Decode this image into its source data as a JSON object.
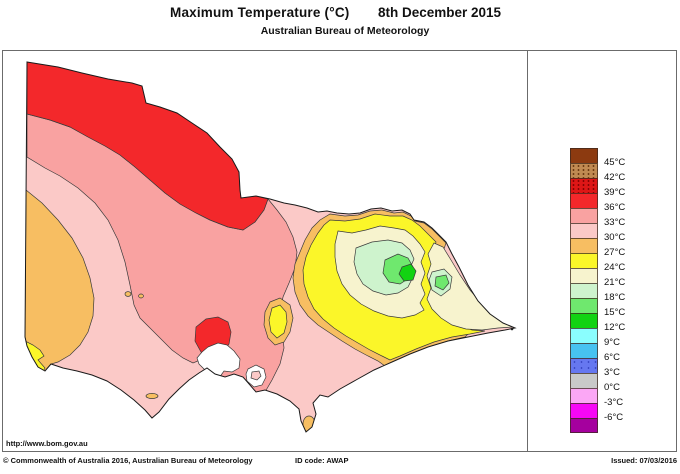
{
  "header": {
    "title": "Maximum Temperature (°C)",
    "date": "8th December 2015",
    "subtitle": "Australian Bureau of Meteorology"
  },
  "map": {
    "url_label": "http://www.bom.gov.au",
    "palette": {
      "band_36_39": "#F3282B",
      "band_33_36": "#F9A2A1",
      "band_30_33": "#FBC9C7",
      "band_27_30": "#F7BE62",
      "band_24_27": "#FBF629",
      "band_21_24": "#F7F3CE",
      "band_18_21": "#CEF3CD",
      "band_15_18": "#6FE86E",
      "band_12_15": "#12D312",
      "water": "#FFFFFF",
      "outline": "#1a1a1a",
      "contour": "#3a3a3a"
    }
  },
  "legend": {
    "scale": [
      {
        "color": "#8C3A10",
        "boundary_label": "45°C"
      },
      {
        "color": "#C08A52",
        "speckle": "brown",
        "boundary_label": "42°C"
      },
      {
        "color": "#DE1616",
        "speckle": "darkred",
        "boundary_label": "39°C"
      },
      {
        "color": "#F3282B",
        "boundary_label": "36°C"
      },
      {
        "color": "#F9A2A1",
        "boundary_label": "33°C"
      },
      {
        "color": "#FBC9C7",
        "boundary_label": "30°C"
      },
      {
        "color": "#F7BE62",
        "boundary_label": "27°C"
      },
      {
        "color": "#FBF629",
        "boundary_label": "24°C"
      },
      {
        "color": "#F7F3CE",
        "boundary_label": "21°C"
      },
      {
        "color": "#CEF3CD",
        "boundary_label": "18°C"
      },
      {
        "color": "#6FE86E",
        "boundary_label": "15°C"
      },
      {
        "color": "#12D312",
        "boundary_label": "12°C"
      },
      {
        "color": "#8AFEFE",
        "boundary_label": "9°C"
      },
      {
        "color": "#47C2F1",
        "boundary_label": "6°C"
      },
      {
        "color": "#6677F0",
        "speckle": "blue",
        "boundary_label": "3°C"
      },
      {
        "color": "#C9C9C9",
        "boundary_label": "0°C"
      },
      {
        "color": "#FBA7F5",
        "boundary_label": "-3°C"
      },
      {
        "color": "#F607F6",
        "boundary_label": "-6°C"
      },
      {
        "color": "#A5009E"
      }
    ]
  },
  "footer": {
    "copyright": "© Commonwealth of Australia 2016, Australian Bureau of Meteorology",
    "id_code": "ID code: AWAP",
    "issued": "Issued: 07/03/2016"
  }
}
